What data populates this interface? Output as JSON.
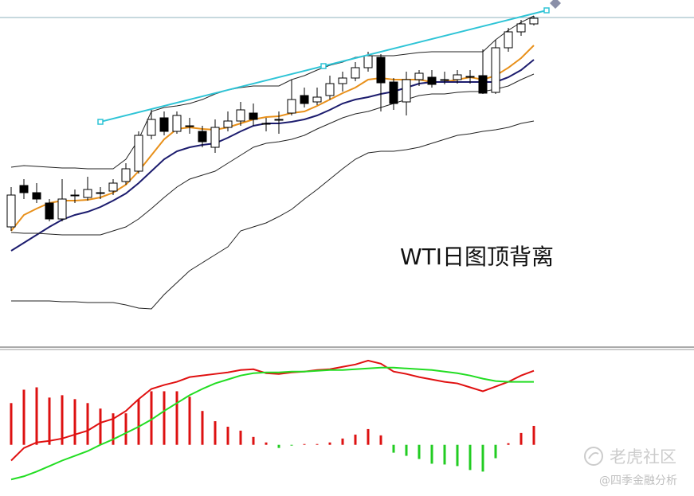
{
  "annotation": "WTI日图顶背离",
  "watermark": {
    "brand": "老虎社区",
    "author": "@四季金融分析"
  },
  "chart_data": [
    {
      "type": "candlestick",
      "ylim": [
        0,
        435
      ],
      "up_color": "#ffffff",
      "down_color": "#000000",
      "open": [
        150,
        202,
        193,
        180,
        160,
        189,
        187,
        192,
        195,
        207,
        220,
        265,
        287,
        270,
        277,
        270,
        250,
        275,
        283,
        293,
        280,
        285,
        293,
        315,
        307,
        315,
        330,
        337,
        350,
        363,
        332,
        307,
        335,
        338,
        335,
        335,
        339,
        340,
        319,
        375,
        395,
        405
      ],
      "close": [
        190,
        193,
        185,
        160,
        185,
        190,
        197,
        193,
        205,
        223,
        265,
        285,
        270,
        290,
        276,
        257,
        275,
        283,
        297,
        285,
        279,
        284,
        310,
        305,
        313,
        330,
        337,
        350,
        365,
        331,
        305,
        335,
        343,
        329,
        334,
        341,
        338,
        318,
        375,
        395,
        405,
        412
      ],
      "high": [
        200,
        210,
        205,
        185,
        210,
        197,
        213,
        200,
        210,
        230,
        270,
        297,
        295,
        295,
        287,
        277,
        285,
        295,
        307,
        305,
        287,
        295,
        335,
        325,
        325,
        340,
        345,
        357,
        370,
        367,
        337,
        345,
        347,
        347,
        345,
        347,
        347,
        373,
        385,
        400,
        410,
        415
      ],
      "low": [
        145,
        185,
        180,
        157,
        157,
        180,
        183,
        185,
        190,
        203,
        217,
        260,
        265,
        267,
        267,
        250,
        243,
        270,
        277,
        277,
        270,
        267,
        290,
        300,
        303,
        310,
        320,
        333,
        345,
        295,
        297,
        290,
        327,
        325,
        329,
        330,
        330,
        317,
        317,
        370,
        390,
        403
      ],
      "series": [
        {
          "color": "#e8901a",
          "width": 2,
          "values": [
            145,
            165,
            173,
            180,
            183,
            183,
            184,
            187,
            193,
            203,
            220,
            240,
            260,
            273,
            275,
            273,
            272,
            275,
            280,
            285,
            288,
            289,
            293,
            295,
            302,
            310,
            318,
            325,
            335,
            337,
            335,
            335,
            335,
            332,
            332,
            335,
            338,
            335,
            340,
            350,
            362,
            378
          ]
        },
        {
          "color": "#1c1c6e",
          "width": 2,
          "values": [
            120,
            130,
            140,
            150,
            159,
            165,
            169,
            175,
            183,
            192,
            205,
            220,
            235,
            245,
            250,
            253,
            255,
            262,
            270,
            277,
            280,
            280,
            282,
            285,
            290,
            297,
            305,
            310,
            313,
            317,
            320,
            325,
            330,
            332,
            332,
            332,
            332,
            332,
            332,
            338,
            347,
            360
          ]
        },
        {
          "color": "#222222",
          "width": 1,
          "values": [
            225,
            227,
            226,
            225,
            224,
            224,
            223,
            223,
            223,
            235,
            260,
            295,
            300,
            302,
            305,
            310,
            317,
            322,
            325,
            327,
            327,
            327,
            335,
            340,
            347,
            353,
            357,
            363,
            365,
            365,
            365,
            367,
            369,
            370,
            370,
            370,
            370,
            370,
            385,
            397,
            407,
            415
          ]
        },
        {
          "color": "#222222",
          "width": 1,
          "values": [
            143,
            142,
            142,
            141,
            140,
            140,
            140,
            140,
            145,
            150,
            160,
            173,
            187,
            200,
            210,
            215,
            220,
            230,
            240,
            250,
            255,
            257,
            260,
            265,
            273,
            280,
            287,
            292,
            295,
            300,
            305,
            310,
            315,
            317,
            317,
            319,
            320,
            320,
            323,
            327,
            335,
            342
          ]
        },
        {
          "color": "#222222",
          "width": 1,
          "values": [
            57,
            57,
            57,
            57,
            56,
            56,
            55,
            55,
            55,
            52,
            48,
            47,
            65,
            80,
            95,
            105,
            115,
            125,
            145,
            150,
            155,
            163,
            172,
            185,
            197,
            210,
            223,
            235,
            243,
            245,
            245,
            247,
            250,
            255,
            260,
            265,
            267,
            270,
            272,
            275,
            280,
            283
          ]
        }
      ],
      "trendline": {
        "color": "#2ec4d6",
        "x": [
          7,
          24.5,
          42
        ],
        "values": [
          282,
          352,
          422
        ]
      }
    },
    {
      "type": "macd",
      "ylim": [
        -65,
        118
      ],
      "pos_color": "#dd1111",
      "neg_color": "#22cc22",
      "values": [
        53,
        70,
        73,
        60,
        63,
        58,
        53,
        46,
        40,
        40,
        58,
        68,
        68,
        68,
        61,
        43,
        30,
        23,
        18,
        10,
        3,
        -4,
        -1,
        1,
        1,
        3,
        8,
        13,
        20,
        12,
        -10,
        -14,
        -18,
        -24,
        -25,
        -27,
        -32,
        -34,
        -17,
        2,
        15,
        24
      ],
      "series": [
        {
          "color": "#e01010",
          "values": [
            -20,
            -4,
            3,
            5,
            8,
            13,
            18,
            28,
            33,
            43,
            58,
            71,
            76,
            80,
            86,
            88,
            90,
            92,
            95,
            96,
            91,
            90,
            92,
            93,
            95,
            96,
            99,
            102,
            107,
            103,
            93,
            90,
            86,
            83,
            80,
            78,
            73,
            68,
            74,
            80,
            88,
            94
          ]
        },
        {
          "color": "#22dd22",
          "values": [
            -44,
            -40,
            -34,
            -27,
            -20,
            -14,
            -8,
            0,
            7,
            15,
            23,
            32,
            43,
            53,
            63,
            71,
            78,
            83,
            88,
            91,
            92,
            92,
            93,
            93,
            94,
            95,
            95,
            96,
            97,
            98,
            98,
            97,
            96,
            95,
            93,
            91,
            88,
            84,
            81,
            80,
            80,
            80
          ]
        }
      ]
    }
  ]
}
